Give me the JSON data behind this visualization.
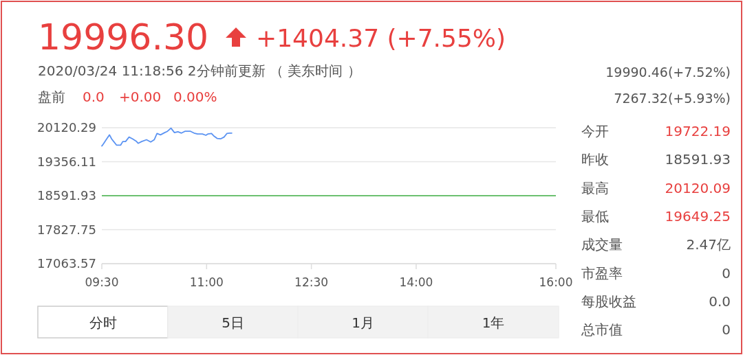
{
  "chart_data": {
    "type": "line",
    "title": "19996.30",
    "annotations": [
      "+1404.37 (+7.55%)",
      "2020/03/24 11:18:56  2分钟前更新 （ 美东时间 ）",
      "盘前",
      "0.0",
      "+0.00",
      "0.00%",
      "19990.46(+7.52%)",
      "7267.32(+5.93%)",
      "今开",
      "19722.19",
      "昨收",
      "18591.93",
      "最高",
      "20120.09",
      "最低",
      "19649.25",
      "成交量",
      "2.47亿",
      "市盈率",
      "0",
      "每股收益",
      "0.0",
      "总市值",
      "0",
      "分时",
      "5日",
      "1月",
      "1年"
    ],
    "x": [
      9.5,
      9.52,
      9.57,
      9.61,
      9.64,
      9.67,
      9.71,
      9.77,
      9.8,
      9.84,
      9.89,
      9.94,
      9.99,
      10.02,
      10.07,
      10.14,
      10.2,
      10.25,
      10.29,
      10.34,
      10.4,
      10.44,
      10.49,
      10.54,
      10.59,
      10.64,
      10.69,
      10.77,
      10.82,
      10.87,
      10.94,
      10.99,
      11.02,
      11.07,
      11.1,
      11.15,
      11.2,
      11.25,
      11.29,
      11.33,
      11.36
    ],
    "series": [
      {
        "color": "#5b93f2",
        "values": [
          19710,
          19750,
          19870,
          19960,
          19870,
          19810,
          19730,
          19730,
          19810,
          19810,
          19910,
          19870,
          19820,
          19770,
          19810,
          19850,
          19800,
          19850,
          19990,
          19960,
          20010,
          20040,
          20110,
          20010,
          20030,
          20000,
          20040,
          20040,
          20000,
          19980,
          19980,
          19950,
          19980,
          19990,
          19940,
          19880,
          19870,
          19910,
          19990,
          20000,
          20000
        ]
      }
    ],
    "xlim": [
      9.5,
      16
    ],
    "xticks": [
      {
        "value": 9.5,
        "label": "09:30"
      },
      {
        "value": 11,
        "label": "11:00"
      },
      {
        "value": 12.5,
        "label": "12:30"
      },
      {
        "value": 14,
        "label": "14:00"
      },
      {
        "value": 16,
        "label": "16:00"
      }
    ],
    "ylim": [
      17063.57,
      20120.29
    ],
    "yticks": [
      17063.57,
      17827.75,
      18591.93,
      19356.11,
      20120.29
    ],
    "ref_lines": [
      {
        "axis": "y",
        "value": 18591.93,
        "color": "#6cc070"
      }
    ],
    "grid": "y",
    "line_style": "solid"
  }
}
